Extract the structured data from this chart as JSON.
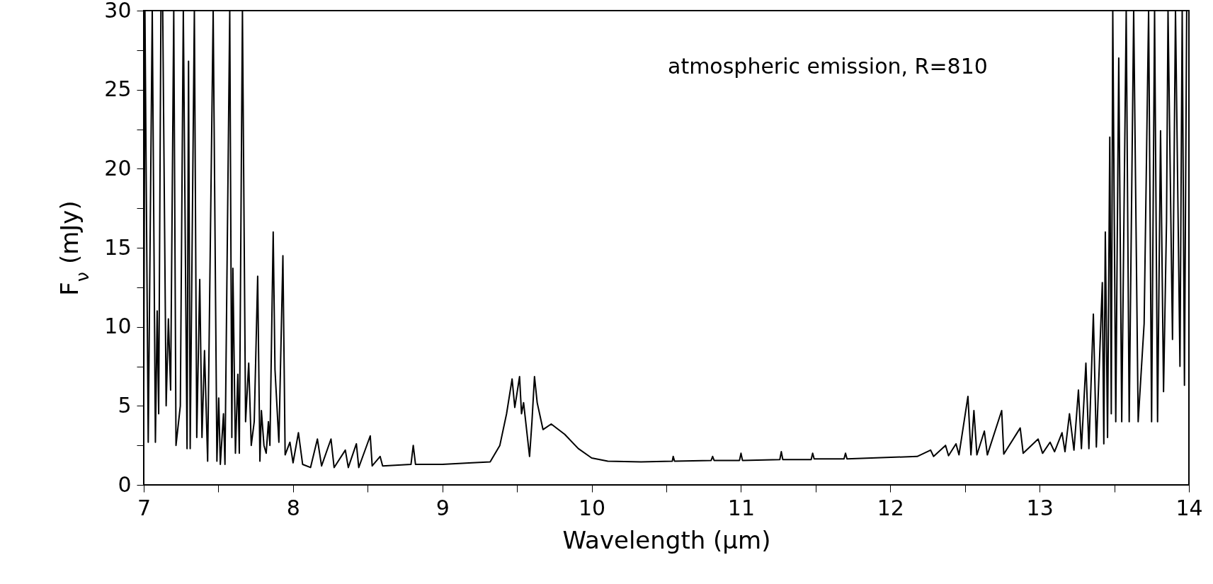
{
  "chart_data": {
    "type": "line",
    "xlabel": "Wavelength (μm)",
    "ylabel": "F$_{ν}$ (mJy)",
    "annotations": [
      "atmospheric emission, R=810"
    ],
    "xlim": [
      7,
      14
    ],
    "ylim": [
      0,
      30
    ],
    "xticks": [
      7,
      {
        "value": 7.5,
        "label": null
      },
      8,
      {
        "value": 8.5,
        "label": null
      },
      9,
      {
        "value": 9.5,
        "label": null
      },
      10,
      {
        "value": 10.5,
        "label": null
      },
      11,
      {
        "value": 11.5,
        "label": null
      },
      12,
      {
        "value": 12.5,
        "label": null
      },
      13,
      {
        "value": 13.5,
        "label": null
      },
      14
    ],
    "yticks": [
      0,
      {
        "value": 2.5,
        "label": null
      },
      5,
      {
        "value": 7.5,
        "label": null
      },
      10,
      {
        "value": 12.5,
        "label": null
      },
      15,
      {
        "value": 17.5,
        "label": null
      },
      20,
      {
        "value": 22.5,
        "label": null
      },
      25,
      {
        "value": 27.5,
        "label": null
      },
      30
    ],
    "grid": false,
    "marker": "none",
    "line_style": "solid",
    "series": [
      {
        "color": "#000000",
        "x": [
          7.0,
          7.008,
          7.03,
          7.057,
          7.078,
          7.09,
          7.1,
          7.115,
          7.127,
          7.15,
          7.165,
          7.18,
          7.201,
          7.216,
          7.245,
          7.265,
          7.29,
          7.3,
          7.311,
          7.339,
          7.355,
          7.375,
          7.39,
          7.407,
          7.428,
          7.465,
          7.49,
          7.502,
          7.513,
          7.534,
          7.544,
          7.576,
          7.59,
          7.597,
          7.614,
          7.63,
          7.64,
          7.661,
          7.682,
          7.703,
          7.72,
          7.74,
          7.763,
          7.778,
          7.788,
          7.805,
          7.82,
          7.835,
          7.845,
          7.867,
          7.879,
          7.905,
          7.932,
          7.947,
          7.979,
          8.0,
          8.036,
          8.064,
          8.117,
          8.163,
          8.191,
          8.254,
          8.275,
          8.35,
          8.37,
          8.424,
          8.44,
          8.517,
          8.53,
          8.583,
          8.6,
          8.79,
          8.805,
          8.82,
          9.0,
          9.2,
          9.32,
          9.385,
          9.43,
          9.467,
          9.485,
          9.517,
          9.53,
          9.544,
          9.584,
          9.6,
          9.617,
          9.635,
          9.674,
          9.729,
          9.819,
          9.91,
          10.0,
          10.108,
          10.33,
          10.54,
          10.546,
          10.555,
          10.8,
          10.81,
          10.82,
          10.99,
          11.0,
          11.01,
          11.26,
          11.27,
          11.28,
          11.47,
          11.48,
          11.49,
          11.69,
          11.7,
          11.71,
          12.18,
          12.27,
          12.29,
          12.37,
          12.39,
          12.44,
          12.46,
          12.52,
          12.54,
          12.56,
          12.58,
          12.63,
          12.65,
          12.746,
          12.76,
          12.87,
          12.89,
          12.99,
          13.02,
          13.07,
          13.1,
          13.15,
          13.17,
          13.2,
          13.23,
          13.26,
          13.28,
          13.31,
          13.33,
          13.36,
          13.38,
          13.42,
          13.43,
          13.44,
          13.455,
          13.47,
          13.48,
          13.49,
          13.51,
          13.53,
          13.55,
          13.58,
          13.6,
          13.63,
          13.66,
          13.7,
          13.73,
          13.75,
          13.77,
          13.79,
          13.81,
          13.83,
          13.85,
          13.86,
          13.89,
          13.91,
          13.94,
          13.955,
          13.97,
          13.985,
          14.0
        ],
        "values": [
          6,
          30,
          2.7,
          30,
          2.7,
          11,
          4.5,
          30,
          30,
          5,
          10.5,
          6,
          30,
          2.5,
          5,
          30,
          2.3,
          26.8,
          2.3,
          30,
          3,
          13,
          3,
          8.5,
          1.5,
          30,
          1.5,
          5.5,
          1.3,
          4.5,
          1.3,
          30,
          3,
          13.7,
          2,
          7,
          2,
          30,
          4,
          7.7,
          2.5,
          4,
          13.2,
          1.5,
          4.7,
          2.5,
          2,
          4,
          2.5,
          16,
          7.3,
          2.7,
          14.5,
          1.9,
          2.7,
          1.4,
          3.3,
          1.3,
          1.1,
          2.9,
          1.2,
          2.9,
          1.1,
          2.2,
          1.1,
          2.6,
          1.1,
          3.1,
          1.2,
          1.8,
          1.2,
          1.3,
          2.5,
          1.3,
          1.3,
          1.4,
          1.45,
          2.5,
          4.5,
          6.7,
          4.9,
          6.85,
          4.5,
          5.2,
          1.8,
          4,
          6.85,
          5.2,
          3.5,
          3.85,
          3.2,
          2.3,
          1.7,
          1.5,
          1.45,
          1.5,
          1.8,
          1.5,
          1.55,
          1.8,
          1.55,
          1.55,
          2.0,
          1.55,
          1.6,
          2.1,
          1.6,
          1.6,
          2.0,
          1.65,
          1.65,
          2.0,
          1.65,
          1.8,
          2.2,
          1.8,
          2.5,
          1.85,
          2.6,
          1.9,
          5.6,
          1.9,
          4.7,
          1.9,
          3.4,
          1.9,
          4.7,
          1.95,
          3.6,
          2.0,
          2.9,
          2.0,
          2.7,
          2.1,
          3.3,
          2.1,
          4.5,
          2.2,
          6.0,
          2.3,
          7.7,
          2.3,
          10.8,
          2.4,
          12.8,
          2.6,
          16,
          3.0,
          22,
          4.5,
          30,
          4.0,
          27,
          4.0,
          30,
          4.0,
          30,
          4.0,
          10.2,
          30,
          4.0,
          30,
          4.0,
          22.4,
          5.9,
          16.7,
          30,
          9.2,
          30,
          7.5,
          30,
          6.3,
          30,
          30
        ]
      }
    ]
  }
}
